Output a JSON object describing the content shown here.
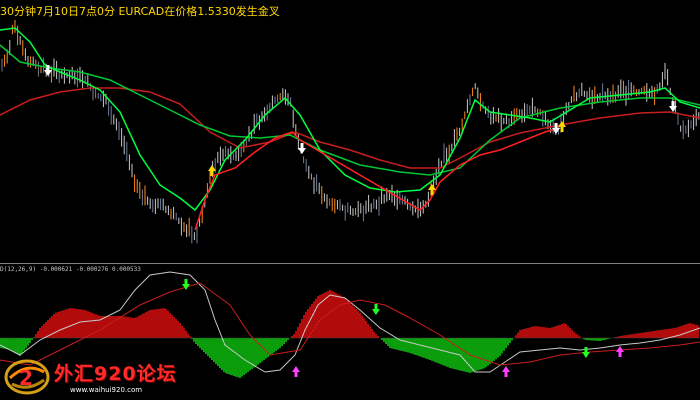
{
  "header": {
    "title": "30分钟7月10日7点0分 EURCAD在价格1.5330发生金叉"
  },
  "indicator": {
    "label": "D(12,26,9) -0.000621 -0.000276 0.000533"
  },
  "watermark": {
    "text": "外汇920论坛",
    "url": "www.waihui920.com"
  },
  "colors": {
    "background": "#000000",
    "fast_ma": "#ff2020",
    "medium_ma": "#00ff40",
    "slow_ma": "#00c832",
    "long_ma": "#c81e1e",
    "hist_positive": "#ff1010",
    "hist_negative": "#10e010",
    "signal_line": "#c8c8c8",
    "macd_line": "#c81e1e",
    "arrow_buy": "#ffd800",
    "arrow_sell": "#ffffff",
    "arrow_ind_up": "#ff40ff",
    "arrow_ind_down": "#20ff20",
    "separator": "#808080"
  },
  "icons": {
    "up_arrow": "buy-arrow-icon",
    "down_arrow": "sell-arrow-icon",
    "logo": "forum-logo-icon"
  }
}
